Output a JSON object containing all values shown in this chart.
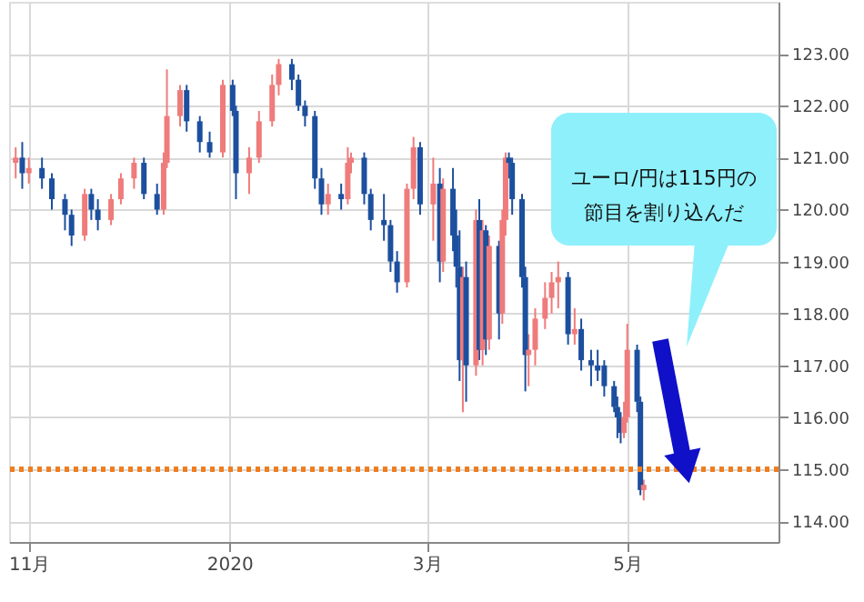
{
  "chart_data": {
    "type": "candlestick",
    "x": [
      "2019-10-28",
      "2019-10-30",
      "2019-11-01",
      "2019-11-05",
      "2019-11-08",
      "2019-11-12",
      "2019-11-14",
      "2019-11-18",
      "2019-11-20",
      "2019-11-22",
      "2019-11-26",
      "2019-11-29",
      "2019-12-03",
      "2019-12-06",
      "2019-12-10",
      "2019-12-12",
      "2019-12-13",
      "2019-12-17",
      "2019-12-19",
      "2019-12-23",
      "2019-12-26",
      "2019-12-30",
      "2020-01-02",
      "2020-01-03",
      "2020-01-07",
      "2020-01-10",
      "2020-01-14",
      "2020-01-16",
      "2020-01-20",
      "2020-01-22",
      "2020-01-24",
      "2020-01-27",
      "2020-01-29",
      "2020-01-31",
      "2020-02-04",
      "2020-02-06",
      "2020-02-07",
      "2020-02-11",
      "2020-02-13",
      "2020-02-17",
      "2020-02-19",
      "2020-02-21",
      "2020-02-24",
      "2020-02-26",
      "2020-02-28",
      "2020-03-03",
      "2020-03-05",
      "2020-03-06",
      "2020-03-09",
      "2020-03-10",
      "2020-03-11",
      "2020-03-12",
      "2020-03-13",
      "2020-03-16",
      "2020-03-17",
      "2020-03-18",
      "2020-03-19",
      "2020-03-20",
      "2020-03-23",
      "2020-03-24",
      "2020-03-25",
      "2020-03-26",
      "2020-03-27",
      "2020-03-30",
      "2020-03-31",
      "2020-04-01",
      "2020-04-03",
      "2020-04-06",
      "2020-04-08",
      "2020-04-10",
      "2020-04-13",
      "2020-04-15",
      "2020-04-17",
      "2020-04-20",
      "2020-04-22",
      "2020-04-24",
      "2020-04-27",
      "2020-04-28",
      "2020-04-29",
      "2020-04-30",
      "2020-05-01",
      "2020-05-04",
      "2020-05-05",
      "2020-05-06"
    ],
    "ohlc": [
      [
        120.9,
        121.2,
        120.6,
        121.0
      ],
      [
        121.0,
        121.3,
        120.4,
        120.7
      ],
      [
        120.7,
        121.0,
        120.5,
        120.8
      ],
      [
        120.8,
        121.0,
        120.4,
        120.6
      ],
      [
        120.6,
        120.7,
        120.0,
        120.2
      ],
      [
        120.2,
        120.3,
        119.6,
        119.9
      ],
      [
        119.9,
        120.0,
        119.3,
        119.5
      ],
      [
        119.5,
        120.4,
        119.4,
        120.3
      ],
      [
        120.3,
        120.4,
        119.8,
        120.0
      ],
      [
        120.0,
        120.2,
        119.6,
        119.8
      ],
      [
        119.8,
        120.3,
        119.7,
        120.2
      ],
      [
        120.2,
        120.7,
        120.1,
        120.6
      ],
      [
        120.6,
        121.0,
        120.4,
        120.9
      ],
      [
        120.9,
        121.0,
        120.2,
        120.3
      ],
      [
        120.3,
        120.5,
        119.9,
        120.0
      ],
      [
        120.0,
        121.1,
        119.9,
        120.9
      ],
      [
        120.9,
        122.7,
        120.8,
        121.8
      ],
      [
        121.8,
        122.4,
        121.6,
        122.3
      ],
      [
        122.3,
        122.4,
        121.5,
        121.7
      ],
      [
        121.7,
        121.8,
        121.1,
        121.3
      ],
      [
        121.3,
        121.5,
        121.0,
        121.1
      ],
      [
        121.1,
        122.5,
        121.0,
        122.4
      ],
      [
        122.4,
        122.5,
        121.8,
        121.9
      ],
      [
        121.9,
        122.0,
        120.2,
        120.7
      ],
      [
        120.7,
        121.2,
        120.3,
        121.0
      ],
      [
        121.0,
        121.9,
        120.9,
        121.7
      ],
      [
        121.7,
        122.6,
        121.6,
        122.4
      ],
      [
        122.4,
        122.9,
        122.2,
        122.8
      ],
      [
        122.8,
        122.9,
        122.3,
        122.5
      ],
      [
        122.5,
        122.6,
        121.9,
        122.0
      ],
      [
        122.0,
        122.1,
        121.6,
        121.8
      ],
      [
        121.8,
        121.9,
        120.4,
        120.6
      ],
      [
        120.6,
        120.8,
        119.9,
        120.1
      ],
      [
        120.1,
        120.5,
        119.9,
        120.3
      ],
      [
        120.3,
        120.5,
        120.0,
        120.2
      ],
      [
        120.2,
        121.2,
        120.1,
        120.9
      ],
      [
        120.9,
        121.1,
        120.7,
        121.0
      ],
      [
        121.0,
        121.1,
        120.1,
        120.3
      ],
      [
        120.3,
        120.4,
        119.6,
        119.8
      ],
      [
        119.8,
        120.3,
        119.4,
        119.7
      ],
      [
        119.7,
        119.8,
        118.8,
        119.0
      ],
      [
        119.0,
        119.2,
        118.4,
        118.6
      ],
      [
        118.6,
        120.5,
        118.5,
        120.4
      ],
      [
        120.4,
        121.4,
        120.2,
        121.2
      ],
      [
        121.2,
        121.3,
        119.9,
        120.1
      ],
      [
        120.1,
        121.0,
        119.4,
        120.5
      ],
      [
        120.5,
        120.8,
        118.6,
        119.0
      ],
      [
        119.0,
        120.6,
        118.8,
        120.4
      ],
      [
        120.4,
        120.8,
        119.2,
        119.5
      ],
      [
        119.5,
        120.0,
        118.5,
        118.9
      ],
      [
        118.9,
        119.6,
        116.7,
        117.1
      ],
      [
        117.1,
        118.9,
        116.1,
        118.7
      ],
      [
        118.7,
        119.0,
        116.3,
        117.0
      ],
      [
        117.0,
        120.0,
        116.8,
        119.8
      ],
      [
        119.8,
        120.2,
        117.1,
        117.3
      ],
      [
        117.3,
        119.8,
        117.0,
        119.6
      ],
      [
        119.6,
        119.7,
        117.2,
        117.5
      ],
      [
        117.5,
        119.5,
        117.3,
        119.3
      ],
      [
        119.3,
        119.4,
        117.5,
        118.0
      ],
      [
        118.0,
        120.0,
        117.8,
        119.8
      ],
      [
        119.8,
        121.1,
        119.5,
        121.0
      ],
      [
        121.0,
        121.1,
        120.6,
        120.9
      ],
      [
        120.9,
        121.0,
        119.9,
        120.2
      ],
      [
        120.2,
        120.3,
        118.5,
        118.7
      ],
      [
        118.7,
        118.9,
        116.5,
        117.2
      ],
      [
        117.2,
        117.6,
        116.6,
        117.3
      ],
      [
        117.3,
        118.1,
        117.0,
        117.9
      ],
      [
        117.9,
        118.6,
        117.7,
        118.3
      ],
      [
        118.3,
        118.8,
        118.0,
        118.6
      ],
      [
        118.6,
        119.0,
        118.1,
        118.7
      ],
      [
        118.7,
        118.8,
        117.4,
        117.6
      ],
      [
        117.6,
        118.1,
        117.4,
        117.7
      ],
      [
        117.7,
        117.9,
        116.9,
        117.1
      ],
      [
        117.1,
        117.3,
        116.6,
        117.0
      ],
      [
        117.0,
        117.3,
        116.7,
        116.9
      ],
      [
        117.0,
        117.1,
        116.4,
        116.6
      ],
      [
        116.6,
        116.7,
        116.1,
        116.2
      ],
      [
        116.2,
        116.4,
        115.6,
        116.0
      ],
      [
        116.0,
        116.1,
        115.5,
        115.7
      ],
      [
        115.7,
        116.3,
        115.6,
        116.0
      ],
      [
        116.0,
        117.8,
        115.9,
        117.3
      ],
      [
        117.3,
        117.4,
        116.1,
        116.3
      ],
      [
        116.3,
        116.4,
        114.5,
        114.6
      ],
      [
        114.6,
        114.8,
        114.4,
        114.7
      ]
    ],
    "colors": [
      "#ef7b7b",
      "#1c4f9e",
      "#ef7b7b",
      "#1c4f9e",
      "#1c4f9e",
      "#1c4f9e",
      "#1c4f9e",
      "#ef7b7b",
      "#1c4f9e",
      "#1c4f9e",
      "#ef7b7b",
      "#ef7b7b",
      "#ef7b7b",
      "#1c4f9e",
      "#1c4f9e",
      "#ef7b7b",
      "#ef7b7b",
      "#ef7b7b",
      "#1c4f9e",
      "#1c4f9e",
      "#1c4f9e",
      "#ef7b7b",
      "#1c4f9e",
      "#1c4f9e",
      "#ef7b7b",
      "#ef7b7b",
      "#ef7b7b",
      "#ef7b7b",
      "#1c4f9e",
      "#1c4f9e",
      "#1c4f9e",
      "#1c4f9e",
      "#1c4f9e",
      "#ef7b7b",
      "#1c4f9e",
      "#ef7b7b",
      "#ef7b7b",
      "#1c4f9e",
      "#1c4f9e",
      "#1c4f9e",
      "#1c4f9e",
      "#1c4f9e",
      "#ef7b7b",
      "#ef7b7b",
      "#1c4f9e",
      "#ef7b7b",
      "#1c4f9e",
      "#ef7b7b",
      "#1c4f9e",
      "#1c4f9e",
      "#1c4f9e",
      "#ef7b7b",
      "#1c4f9e",
      "#ef7b7b",
      "#1c4f9e",
      "#ef7b7b",
      "#1c4f9e",
      "#ef7b7b",
      "#1c4f9e",
      "#ef7b7b",
      "#ef7b7b",
      "#1c4f9e",
      "#1c4f9e",
      "#1c4f9e",
      "#1c4f9e",
      "#ef7b7b",
      "#ef7b7b",
      "#ef7b7b",
      "#ef7b7b",
      "#ef7b7b",
      "#1c4f9e",
      "#ef7b7b",
      "#1c4f9e",
      "#1c4f9e",
      "#1c4f9e",
      "#1c4f9e",
      "#1c4f9e",
      "#1c4f9e",
      "#1c4f9e",
      "#ef7b7b",
      "#ef7b7b",
      "#1c4f9e",
      "#1c4f9e",
      "#ef7b7b"
    ],
    "xlim": [
      "2019-10-26",
      "2020-06-16"
    ],
    "xticks": [
      {
        "value": "2019-11-01",
        "label": "11月"
      },
      {
        "value": "2020-01-01",
        "label": "2020"
      },
      {
        "value": "2020-03-01",
        "label": "3月"
      },
      {
        "value": "2020-05-01",
        "label": "5月"
      }
    ],
    "ylim": [
      113.6,
      124.0
    ],
    "yticks": [
      {
        "value": 114,
        "label": "114.00"
      },
      {
        "value": 115,
        "label": "115.00"
      },
      {
        "value": 116,
        "label": "116.00"
      },
      {
        "value": 117,
        "label": "117.00"
      },
      {
        "value": 118,
        "label": "118.00"
      },
      {
        "value": 119,
        "label": "119.00"
      },
      {
        "value": 120,
        "label": "120.00"
      },
      {
        "value": 121,
        "label": "121.00"
      },
      {
        "value": 122,
        "label": "122.00"
      },
      {
        "value": 123,
        "label": "123.00"
      }
    ],
    "grid": true,
    "ref_lines": [
      {
        "axis": "y",
        "value": 115,
        "color": "#f07d1e",
        "line_style": "dotted"
      }
    ],
    "annotations": [
      "ユーロ/円は115円の節目を割り込んだ"
    ]
  }
}
